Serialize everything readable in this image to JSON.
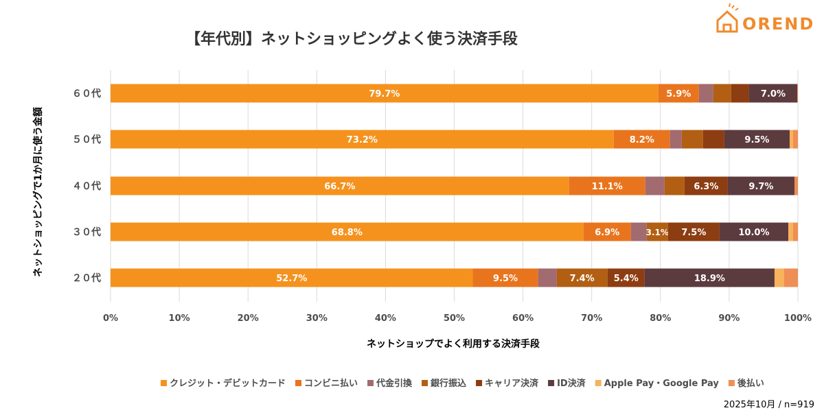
{
  "logo": {
    "text": "OREND"
  },
  "footnote": "2025年10月 / n=919",
  "colors": {
    "grid": "#d9d9d9",
    "axis_text": "#4d4d4d",
    "title": "#333333",
    "logo": "#f08a2c",
    "label_light": "#ffffff",
    "label_dark": "#ffffff"
  },
  "chart_data": {
    "type": "bar",
    "orientation": "horizontal",
    "stacked": "percent",
    "title": "【年代別】ネットショッピングよく使う決済手段",
    "xlabel": "ネットショップでよく利用する決済手段",
    "ylabel": "ネットショッピングで1か月に使う金額",
    "xlim": [
      0,
      100
    ],
    "xticks": [
      "0%",
      "10%",
      "20%",
      "30%",
      "40%",
      "50%",
      "60%",
      "70%",
      "80%",
      "90%",
      "100%"
    ],
    "grid": true,
    "legend_position": "bottom",
    "categories": [
      "６０代",
      "５０代",
      "４０代",
      "３０代",
      "２０代"
    ],
    "series": [
      {
        "name": "クレジット・デビットカード",
        "color": "#f5921e",
        "values": [
          79.7,
          73.2,
          66.7,
          68.8,
          52.7
        ],
        "labels": [
          "79.7%",
          "73.2%",
          "66.7%",
          "68.8%",
          "52.7%"
        ]
      },
      {
        "name": "コンビニ払い",
        "color": "#e8751e",
        "values": [
          5.9,
          8.2,
          11.1,
          6.9,
          9.5
        ],
        "labels": [
          "5.9%",
          "8.2%",
          "11.1%",
          "6.9%",
          "9.5%"
        ]
      },
      {
        "name": "代金引換",
        "color": "#a26b70",
        "values": [
          2.1,
          1.7,
          2.8,
          2.3,
          2.7
        ],
        "labels": [
          "",
          "",
          "",
          "",
          ""
        ]
      },
      {
        "name": "銀行振込",
        "color": "#b25f14",
        "values": [
          2.6,
          3.1,
          2.9,
          3.1,
          7.4
        ],
        "labels": [
          "",
          "",
          "",
          "3.1%",
          "7.4%"
        ]
      },
      {
        "name": "キャリア決済",
        "color": "#8d3d12",
        "values": [
          2.6,
          3.1,
          6.3,
          7.5,
          5.4
        ],
        "labels": [
          "",
          "",
          "6.3%",
          "7.5%",
          "5.4%"
        ]
      },
      {
        "name": "ID決済",
        "color": "#5c3b3f",
        "values": [
          7.0,
          9.5,
          9.7,
          10.0,
          18.9
        ],
        "labels": [
          "7.0%",
          "9.5%",
          "9.7%",
          "10.0%",
          "18.9%"
        ]
      },
      {
        "name": "Apple Pay・Google Pay",
        "color": "#f7b25c",
        "values": [
          0.0,
          0.5,
          0.0,
          0.7,
          1.4
        ],
        "labels": [
          "",
          "",
          "",
          "",
          ""
        ]
      },
      {
        "name": "後払い",
        "color": "#ee8f55",
        "values": [
          0.1,
          0.7,
          0.5,
          0.7,
          2.0
        ],
        "labels": [
          "",
          "",
          "",
          "",
          ""
        ]
      }
    ]
  }
}
